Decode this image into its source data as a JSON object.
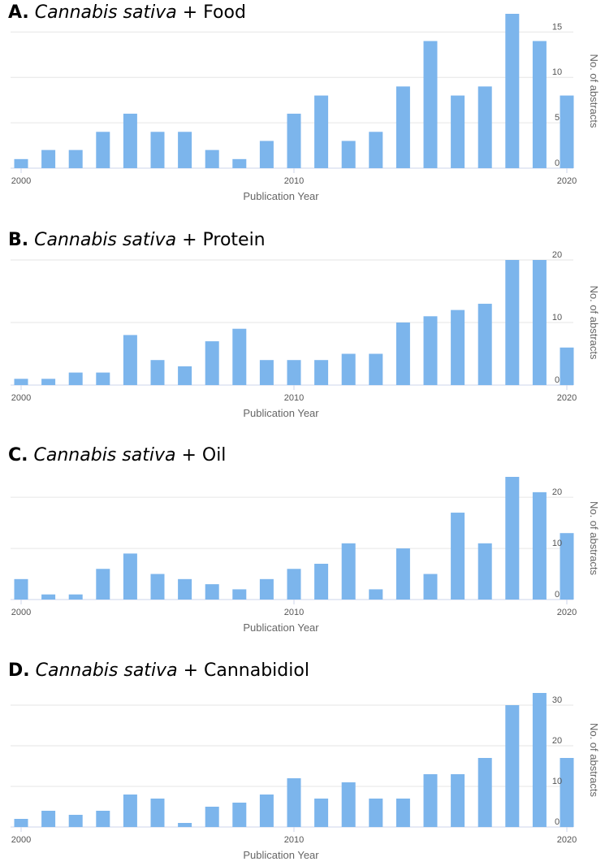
{
  "colors": {
    "bar": "#7cb5ec",
    "grid": "#e6e6e6",
    "axis_line": "#ccd6eb",
    "text": "#666666"
  },
  "chart_data": [
    {
      "type": "bar",
      "panel_letter": "A.",
      "title_species": "Cannabis sativa",
      "title_suffix": "+ Food",
      "x": [
        2000,
        2001,
        2002,
        2003,
        2004,
        2005,
        2006,
        2007,
        2008,
        2009,
        2010,
        2011,
        2012,
        2013,
        2014,
        2015,
        2016,
        2017,
        2018,
        2019,
        2020
      ],
      "values": [
        1,
        2,
        2,
        4,
        6,
        4,
        4,
        2,
        1,
        3,
        6,
        8,
        3,
        4,
        9,
        14,
        8,
        9,
        17,
        14,
        8
      ],
      "xticks": [
        "2000",
        "2010",
        "2020"
      ],
      "yticks": [
        0,
        5,
        10,
        15
      ],
      "ylim": [
        0,
        17
      ],
      "xlabel": "Publication Year",
      "ylabel": "No. of abstracts"
    },
    {
      "type": "bar",
      "panel_letter": "B.",
      "title_species": "Cannabis sativa",
      "title_suffix": "+ Protein",
      "x": [
        2000,
        2001,
        2002,
        2003,
        2004,
        2005,
        2006,
        2007,
        2008,
        2009,
        2010,
        2011,
        2012,
        2013,
        2014,
        2015,
        2016,
        2017,
        2018,
        2019,
        2020
      ],
      "values": [
        1,
        1,
        2,
        2,
        8,
        4,
        3,
        7,
        9,
        4,
        4,
        4,
        5,
        5,
        10,
        11,
        12,
        13,
        20,
        20,
        6
      ],
      "xticks": [
        "2000",
        "2010",
        "2020"
      ],
      "yticks": [
        0,
        10,
        20
      ],
      "ylim": [
        0,
        20
      ],
      "xlabel": "Publication Year",
      "ylabel": "No. of abstracts"
    },
    {
      "type": "bar",
      "panel_letter": "C.",
      "title_species": "Cannabis sativa",
      "title_suffix": "+ Oil",
      "x": [
        2000,
        2001,
        2002,
        2003,
        2004,
        2005,
        2006,
        2007,
        2008,
        2009,
        2010,
        2011,
        2012,
        2013,
        2014,
        2015,
        2016,
        2017,
        2018,
        2019,
        2020
      ],
      "values": [
        4,
        1,
        1,
        6,
        9,
        5,
        4,
        3,
        2,
        4,
        6,
        7,
        11,
        2,
        10,
        5,
        17,
        11,
        24,
        21,
        13
      ],
      "xticks": [
        "2000",
        "2010",
        "2020"
      ],
      "yticks": [
        0,
        10,
        20
      ],
      "ylim": [
        0,
        24
      ],
      "xlabel": "Publication Year",
      "ylabel": "No. of abstracts"
    },
    {
      "type": "bar",
      "panel_letter": "D.",
      "title_species": "Cannabis sativa",
      "title_suffix": "+ Cannabidiol",
      "x": [
        2000,
        2001,
        2002,
        2003,
        2004,
        2005,
        2006,
        2007,
        2008,
        2009,
        2010,
        2011,
        2012,
        2013,
        2014,
        2015,
        2016,
        2017,
        2018,
        2019,
        2020
      ],
      "values": [
        2,
        4,
        3,
        4,
        8,
        7,
        1,
        5,
        6,
        8,
        12,
        7,
        11,
        7,
        7,
        13,
        13,
        17,
        30,
        33,
        17
      ],
      "xticks": [
        "2000",
        "2010",
        "2020"
      ],
      "yticks": [
        0,
        10,
        20,
        30
      ],
      "ylim": [
        0,
        33
      ],
      "xlabel": "Publication Year",
      "ylabel": "No. of abstracts"
    }
  ]
}
